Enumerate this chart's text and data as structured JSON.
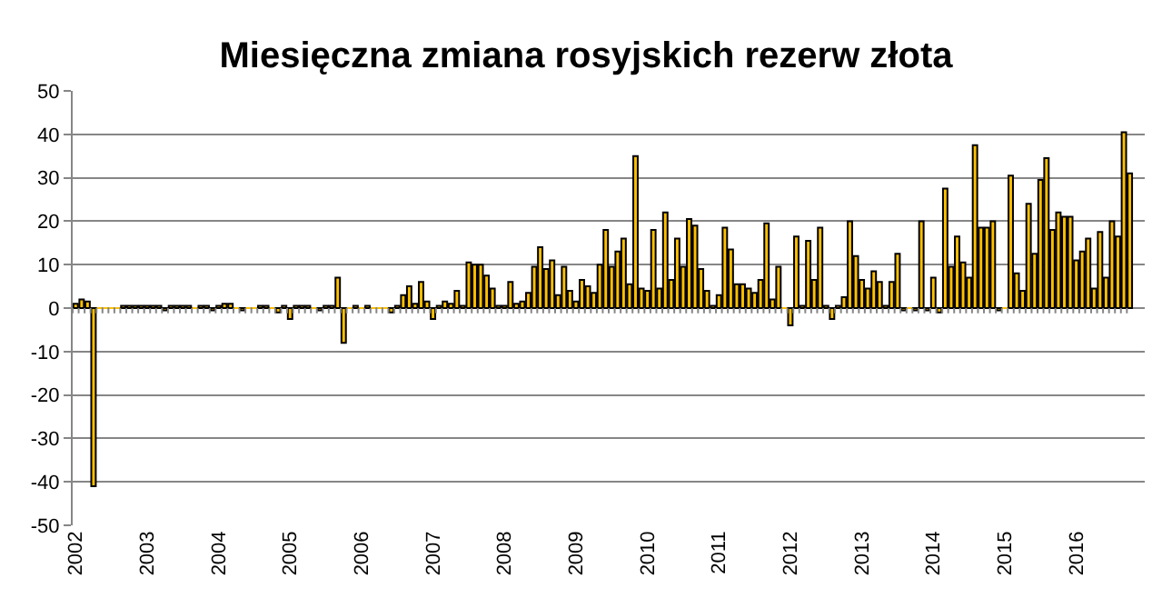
{
  "chart_data": {
    "type": "bar",
    "title": "Miesięczna zmiana rosyjskich rezerw złota",
    "categories": [
      "2002",
      null,
      null,
      null,
      null,
      null,
      null,
      null,
      null,
      null,
      null,
      null,
      "2003",
      null,
      null,
      null,
      null,
      null,
      null,
      null,
      null,
      null,
      null,
      null,
      "2004",
      null,
      null,
      null,
      null,
      null,
      null,
      null,
      null,
      null,
      null,
      null,
      "2005",
      null,
      null,
      null,
      null,
      null,
      null,
      null,
      null,
      null,
      null,
      null,
      "2006",
      null,
      null,
      null,
      null,
      null,
      null,
      null,
      null,
      null,
      null,
      null,
      "2007",
      null,
      null,
      null,
      null,
      null,
      null,
      null,
      null,
      null,
      null,
      null,
      "2008",
      null,
      null,
      null,
      null,
      null,
      null,
      null,
      null,
      null,
      null,
      null,
      "2009",
      null,
      null,
      null,
      null,
      null,
      null,
      null,
      null,
      null,
      null,
      null,
      "2010",
      null,
      null,
      null,
      null,
      null,
      null,
      null,
      null,
      null,
      null,
      null,
      "2011",
      null,
      null,
      null,
      null,
      null,
      null,
      null,
      null,
      null,
      null,
      null,
      "2012",
      null,
      null,
      null,
      null,
      null,
      null,
      null,
      null,
      null,
      null,
      null,
      "2013",
      null,
      null,
      null,
      null,
      null,
      null,
      null,
      null,
      null,
      null,
      null,
      "2014",
      null,
      null,
      null,
      null,
      null,
      null,
      null,
      null,
      null,
      null,
      null,
      "2015",
      null,
      null,
      null,
      null,
      null,
      null,
      null,
      null,
      null,
      null,
      null,
      "2016",
      null,
      null,
      null,
      null,
      null,
      null,
      null,
      null,
      null
    ],
    "values": [
      1,
      2,
      1.5,
      -41,
      0,
      0,
      0,
      0,
      0.5,
      0.5,
      0.5,
      0.5,
      0.5,
      0.5,
      0.5,
      -0.5,
      0.5,
      0.5,
      0.5,
      0.5,
      0,
      0.5,
      0.5,
      -0.5,
      0.5,
      1,
      1,
      0,
      -0.5,
      0,
      0,
      0.5,
      0.5,
      0,
      -1,
      0.5,
      -2.5,
      0.5,
      0.5,
      0.5,
      0,
      -0.5,
      0.5,
      0.5,
      7,
      -8,
      0,
      0.5,
      0,
      0.5,
      0,
      0,
      0,
      -1,
      0.5,
      3,
      5,
      1,
      6,
      1.5,
      -2.5,
      0.5,
      1.5,
      1,
      4,
      0.5,
      10.5,
      10,
      10,
      7.5,
      4.5,
      0.5,
      0.5,
      6,
      1,
      1.5,
      3.5,
      9.5,
      14,
      9,
      11,
      3,
      9.5,
      4,
      1.5,
      6.5,
      5,
      3.5,
      10,
      18,
      9.5,
      13,
      16,
      5.5,
      35,
      4.5,
      4,
      18,
      4.5,
      22,
      6.5,
      16,
      9.5,
      20.5,
      19,
      9,
      4,
      0.5,
      3,
      18.5,
      13.5,
      5.5,
      5.5,
      4.5,
      3.5,
      6.5,
      19.5,
      2,
      9.5,
      0,
      -4,
      16.5,
      0.5,
      15.5,
      6.5,
      18.5,
      0.5,
      -2.5,
      0.5,
      2.5,
      20,
      12,
      6.5,
      4.5,
      8.5,
      6,
      0.5,
      6,
      12.5,
      -0.5,
      0,
      -0.5,
      20,
      -0.5,
      7,
      -1,
      27.5,
      9.5,
      16.5,
      10.5,
      7,
      37.5,
      18.5,
      18.5,
      20,
      -0.5,
      0,
      30.5,
      8,
      4,
      24,
      12.5,
      29.5,
      34.5,
      18,
      22,
      21,
      21,
      11,
      13,
      16,
      4.5,
      17.5,
      7,
      20,
      16.5,
      40.5,
      31
    ],
    "color": "#ffc000",
    "ylim": [
      -50,
      50
    ],
    "yticks": [
      -50,
      -40,
      -30,
      -20,
      -10,
      0,
      10,
      20,
      30,
      40,
      50
    ],
    "grid": "y"
  }
}
